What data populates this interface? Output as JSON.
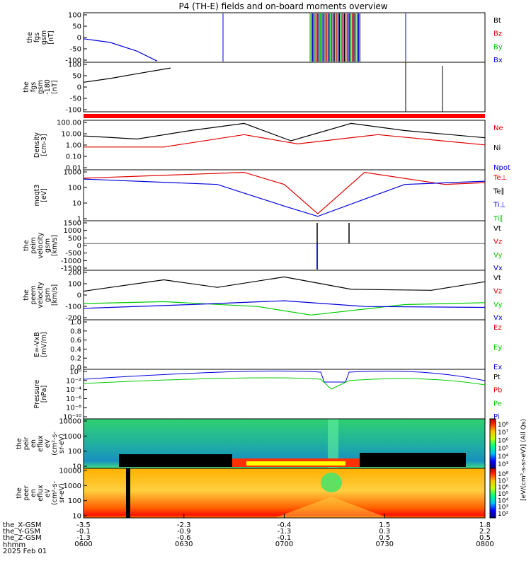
{
  "title": "P4 (TH-E) fields and on-board moments overview",
  "colors": {
    "black": "#000000",
    "red": "#e00000",
    "green": "#00cc00",
    "blue": "#0000dd"
  },
  "chart_data": {
    "type": "line",
    "time_axis": {
      "labels": [
        "0600",
        "0630",
        "0700",
        "0730",
        "0800"
      ],
      "unit_label": "hhmm",
      "date": "2025 Feb 01",
      "ephemeris": [
        {
          "name": "the_X-GSM",
          "values": [
            "-3.5",
            "-2.3",
            "-0.4",
            "1.5",
            "1.8"
          ]
        },
        {
          "name": "the_Y-GSM",
          "values": [
            "-0.1",
            "-0.9",
            "-1.3",
            "0.3",
            "2.2"
          ]
        },
        {
          "name": "the_Z-GSM",
          "values": [
            "-1.3",
            "-0.6",
            "-0.1",
            "0.5",
            "0.5"
          ]
        }
      ]
    },
    "panels": [
      {
        "id": "fgs",
        "ylabel": [
          "the",
          "fgs",
          "gsm",
          "[nT]"
        ],
        "ylim": [
          -100,
          100
        ],
        "ticks": [
          "100",
          "50",
          "0",
          "-50",
          "-100"
        ],
        "legend": [
          {
            "name": "Bt",
            "color": "#000000"
          },
          {
            "name": "Bz",
            "color": "#e00000"
          },
          {
            "name": "By",
            "color": "#00cc00"
          },
          {
            "name": "Bx",
            "color": "#0000dd"
          }
        ]
      },
      {
        "id": "fgs2",
        "ylabel": [
          "the",
          "fgs",
          "gsm",
          "-180",
          "[nT]"
        ],
        "ylim": [
          -130,
          130
        ],
        "ticks": [
          "100",
          "50",
          "0",
          "-50",
          "-100"
        ],
        "legend": []
      },
      {
        "id": "density",
        "ylabel": [
          "Density",
          "[cm-3]"
        ],
        "scale": "log",
        "ylim": [
          0.003,
          200
        ],
        "ticks": [
          "100.00",
          "10.00",
          "1.00",
          "0.10",
          "0.01"
        ],
        "legend": [
          {
            "name": "Ne",
            "color": "#e00000"
          },
          {
            "name": "Ni",
            "color": "#000000"
          },
          {
            "name": "Npot",
            "color": "#0000dd"
          }
        ]
      },
      {
        "id": "temp",
        "ylabel": [
          "moqt3",
          "[eV]"
        ],
        "scale": "log",
        "ylim": [
          1,
          3000
        ],
        "ticks": [
          "1000",
          "100",
          "10",
          "1"
        ],
        "legend": [
          {
            "name": "Te⊥",
            "color": "#e00000"
          },
          {
            "name": "Te∥",
            "color": "#000000"
          },
          {
            "name": "Ti⊥",
            "color": "#0000dd"
          },
          {
            "name": "Ti∥",
            "color": "#00cc00"
          }
        ]
      },
      {
        "id": "peim",
        "ylabel": [
          "the",
          "peim",
          "velocity",
          "gsm",
          "[km/s]"
        ],
        "ylim": [
          -2000,
          1700
        ],
        "ticks": [
          "1500",
          "1000",
          "500",
          "0",
          "-500",
          "-1000",
          "-1500"
        ],
        "legend": [
          {
            "name": "Vt",
            "color": "#000000"
          },
          {
            "name": "Vz",
            "color": "#e00000"
          },
          {
            "name": "Vy",
            "color": "#00cc00"
          },
          {
            "name": "Vx",
            "color": "#0000dd"
          }
        ]
      },
      {
        "id": "peem",
        "ylabel": [
          "the",
          "peem",
          "velocity",
          "gsm",
          "[km/s]"
        ],
        "ylim": [
          -220,
          300
        ],
        "ticks": [
          "200",
          "100",
          "0",
          "-100",
          "-200"
        ],
        "legend": [
          {
            "name": "Vt",
            "color": "#000000"
          },
          {
            "name": "Vz",
            "color": "#e00000"
          },
          {
            "name": "Vy",
            "color": "#00cc00"
          },
          {
            "name": "Vx",
            "color": "#0000dd"
          }
        ]
      },
      {
        "id": "efield",
        "ylabel": [
          "E=-VxB",
          "[mV/m]"
        ],
        "ylim": [
          0,
          1
        ],
        "ticks": [
          "1.0",
          "0.8",
          "0.6",
          "0.4",
          "0.2",
          "0.0"
        ],
        "legend": [
          {
            "name": "Ez",
            "color": "#e00000"
          },
          {
            "name": "Ey",
            "color": "#00cc00"
          },
          {
            "name": "Ex",
            "color": "#0000dd"
          }
        ]
      },
      {
        "id": "pressure",
        "ylabel": [
          "Pressure",
          "[nPa]"
        ],
        "scale": "log",
        "ylim": [
          1e-10,
          10
        ],
        "ticks": [
          "10⁰",
          "10⁻²",
          "10⁻⁴",
          "10⁻⁶",
          "10⁻⁸",
          "10⁻¹⁰"
        ],
        "legend": [
          {
            "name": "Pt",
            "color": "#000000"
          },
          {
            "name": "Pb",
            "color": "#e00000"
          },
          {
            "name": "Pe",
            "color": "#00cc00"
          },
          {
            "name": "Pi",
            "color": "#0000dd"
          }
        ]
      },
      {
        "id": "peir",
        "type": "heatmap",
        "ylabel": [
          "the",
          "peir",
          "en",
          "eflux",
          "eV",
          "(cm²-s-",
          "sr-eV)"
        ],
        "scale": "log",
        "ticks": [
          "10000",
          "1000",
          "100",
          "10"
        ],
        "colorbar": {
          "ticks": [
            "10⁸",
            "10⁷",
            "10⁶",
            "10⁵",
            "10⁴",
            "10³"
          ],
          "label": "[eV/(cm²-s-sr-eV)] (All Qs)"
        }
      },
      {
        "id": "peer",
        "type": "heatmap",
        "ylabel": [
          "the",
          "peer",
          "en",
          "eflux",
          "eV",
          "(cm²-s-",
          "sr-eV)"
        ],
        "scale": "log",
        "ticks": [
          "10000",
          "1000",
          "100",
          "10"
        ],
        "colorbar": {
          "ticks": [
            "10⁸",
            "10⁷",
            "10⁶",
            "10⁵",
            "10⁴",
            "10³",
            "10²"
          ],
          "label": "[eV/(cm²-s-sr-eV)] (All Qs)"
        }
      }
    ],
    "series_samples": {
      "fgs_Bx": [
        [
          0,
          -5
        ],
        [
          20,
          -20
        ],
        [
          40,
          -55
        ],
        [
          55,
          -95
        ]
      ],
      "fgs2_Bt": [
        [
          0,
          25
        ],
        [
          20,
          45
        ],
        [
          40,
          70
        ],
        [
          65,
          100
        ]
      ],
      "density_Ni": [
        [
          0,
          6
        ],
        [
          40,
          3
        ],
        [
          80,
          20
        ],
        [
          120,
          100
        ],
        [
          155,
          2
        ],
        [
          200,
          100
        ],
        [
          240,
          20
        ],
        [
          300,
          4
        ]
      ],
      "density_Ne": [
        [
          0,
          0.5
        ],
        [
          60,
          0.5
        ],
        [
          120,
          8
        ],
        [
          160,
          1
        ],
        [
          220,
          8
        ],
        [
          300,
          0.8
        ]
      ],
      "temp_Te": [
        [
          0,
          800
        ],
        [
          120,
          2000
        ],
        [
          150,
          300
        ],
        [
          175,
          3
        ],
        [
          210,
          2000
        ],
        [
          270,
          300
        ],
        [
          300,
          400
        ]
      ],
      "temp_Ti": [
        [
          0,
          700
        ],
        [
          100,
          300
        ],
        [
          150,
          10
        ],
        [
          175,
          2
        ],
        [
          210,
          30
        ],
        [
          240,
          300
        ],
        [
          300,
          500
        ]
      ],
      "peem_Vt": [
        [
          0,
          80
        ],
        [
          60,
          200
        ],
        [
          100,
          120
        ],
        [
          150,
          230
        ],
        [
          200,
          100
        ],
        [
          260,
          90
        ],
        [
          300,
          180
        ]
      ],
      "peem_Vy": [
        [
          0,
          -50
        ],
        [
          60,
          -30
        ],
        [
          130,
          -80
        ],
        [
          170,
          -170
        ],
        [
          240,
          -60
        ],
        [
          300,
          -40
        ]
      ],
      "peem_Vx": [
        [
          0,
          -100
        ],
        [
          80,
          -60
        ],
        [
          150,
          -20
        ],
        [
          210,
          -80
        ],
        [
          300,
          -90
        ]
      ]
    }
  }
}
